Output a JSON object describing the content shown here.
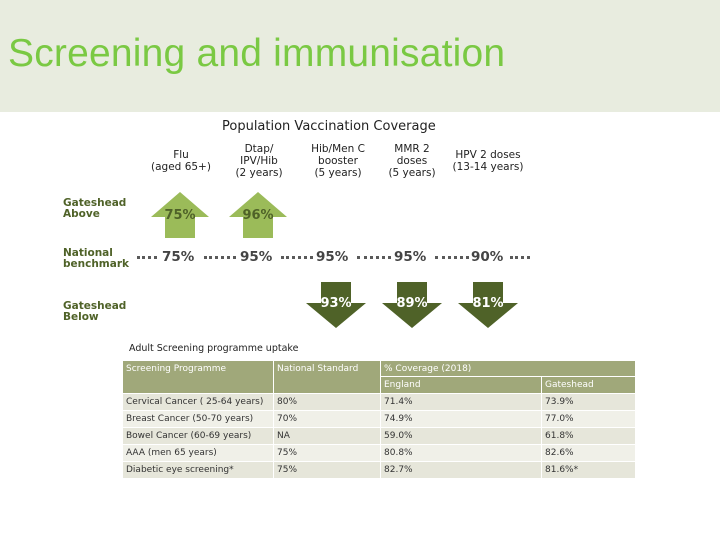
{
  "page_title": "Screening and immunisation",
  "vaccination": {
    "title": "Population Vaccination Coverage",
    "columns": [
      {
        "line1": "Flu",
        "line2": "(aged 65+)",
        "line3": ""
      },
      {
        "line1": "Dtap/",
        "line2": "IPV/Hib",
        "line3": "(2 years)"
      },
      {
        "line1": "Hib/Men C",
        "line2": "booster",
        "line3": "(5 years)"
      },
      {
        "line1": "MMR 2",
        "line2": "doses",
        "line3": "(5 years)"
      },
      {
        "line1": "HPV 2 doses",
        "line2": "(13-14 years)",
        "line3": ""
      }
    ],
    "row_labels": {
      "above_1": "Gateshead",
      "above_2": "Above",
      "bench_1": "National",
      "bench_2": "benchmark",
      "below_1": "Gateshead",
      "below_2": "Below"
    },
    "above": [
      "75%",
      "96%"
    ],
    "benchmark": [
      "75%",
      "95%",
      "95%",
      "95%",
      "90%"
    ],
    "below": [
      "93%",
      "89%",
      "81%"
    ],
    "colors": {
      "up_arrow": "#9bbb59",
      "down_arrow": "#4f6228",
      "up_text": "#4f6228",
      "down_text": "#ffffff"
    }
  },
  "screening": {
    "subtitle": "Adult Screening programme uptake",
    "headers": {
      "programme": "Screening Programme",
      "standard": "National Standard",
      "coverage": "% Coverage (2018)",
      "england": "England",
      "gateshead": "Gateshead"
    },
    "rows": [
      {
        "programme": "Cervical Cancer ( 25-64 years)",
        "standard": "80%",
        "england": "71.4%",
        "gateshead": "73.9%"
      },
      {
        "programme": "Breast Cancer (50-70 years)",
        "standard": "70%",
        "england": "74.9%",
        "gateshead": "77.0%"
      },
      {
        "programme": "Bowel Cancer (60-69 years)",
        "standard": "NA",
        "england": "59.0%",
        "gateshead": "61.8%"
      },
      {
        "programme": "AAA (men 65 years)",
        "standard": "75%",
        "england": "80.8%",
        "gateshead": "82.6%"
      },
      {
        "programme": "Diabetic eye screening*",
        "standard": "75%",
        "england": "82.7%",
        "gateshead": "81.6%*"
      }
    ]
  }
}
